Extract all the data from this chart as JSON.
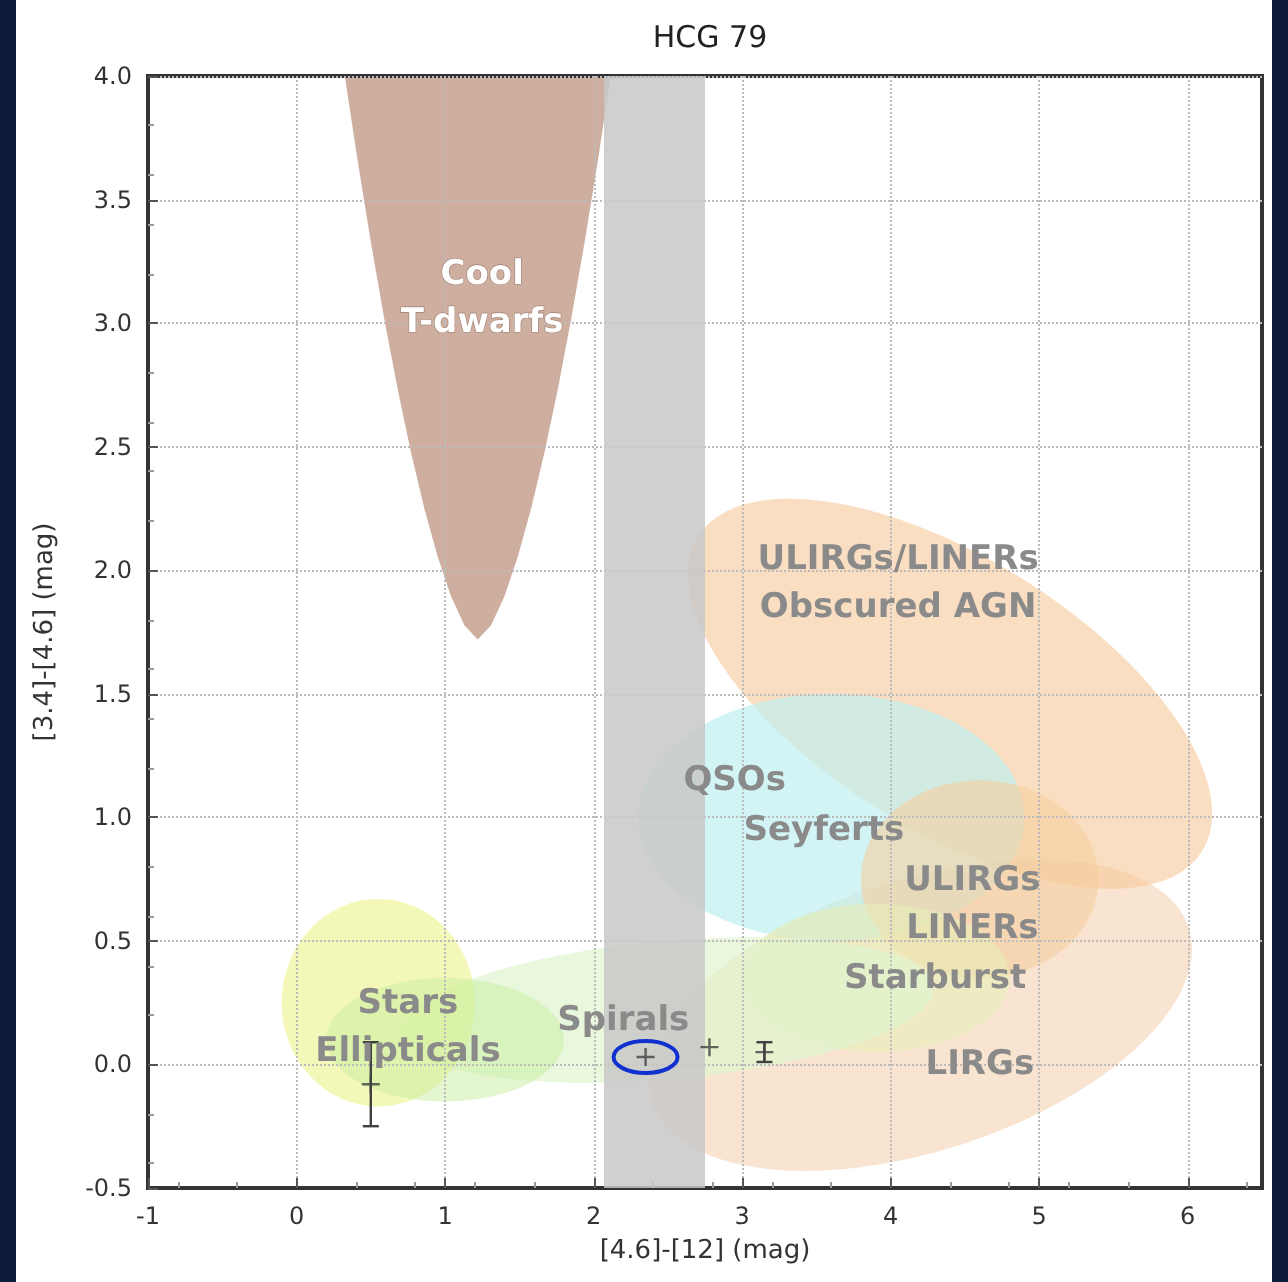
{
  "chart_data": {
    "type": "scatter",
    "title": "HCG 79",
    "xlabel": "[4.6]-[12] (mag)",
    "ylabel": "[3.4]-[4.6] (mag)",
    "xlim": [
      -1,
      6.5
    ],
    "xticks": [
      -1,
      0,
      1,
      2,
      3,
      4,
      5,
      6
    ],
    "ylim": [
      -0.5,
      4
    ],
    "yticks": [
      -0.5,
      {
        "value": 0,
        "label": "0.0"
      },
      0.5,
      {
        "value": 1,
        "label": "1.0"
      },
      1.5,
      {
        "value": 2,
        "label": "2.0"
      },
      2.5,
      {
        "value": 3,
        "label": "3.0"
      },
      3.5,
      {
        "value": 4,
        "label": "4.0"
      }
    ],
    "grid": true,
    "marker": "cross",
    "series": [
      {
        "color": "#404040",
        "x": [
          0.5,
          2.35,
          2.78,
          3.15
        ],
        "values": [
          -0.08,
          0.03,
          0.07,
          0.05
        ],
        "errors": [
          0.17,
          null,
          null,
          0.04
        ]
      }
    ],
    "bands": [
      {
        "axis": "x",
        "from": 2.07,
        "to": 2.75,
        "color": "#c8c8c8"
      }
    ],
    "annotations": [
      "Cool\nT-dwarfs",
      "ULIRGs/LINERs\nObscured AGN",
      "QSOs",
      "Seyferts",
      "ULIRGs\nLINERs",
      "Starburst",
      "Stars\nEllipticals",
      "Spirals",
      "LIRGs"
    ]
  }
}
